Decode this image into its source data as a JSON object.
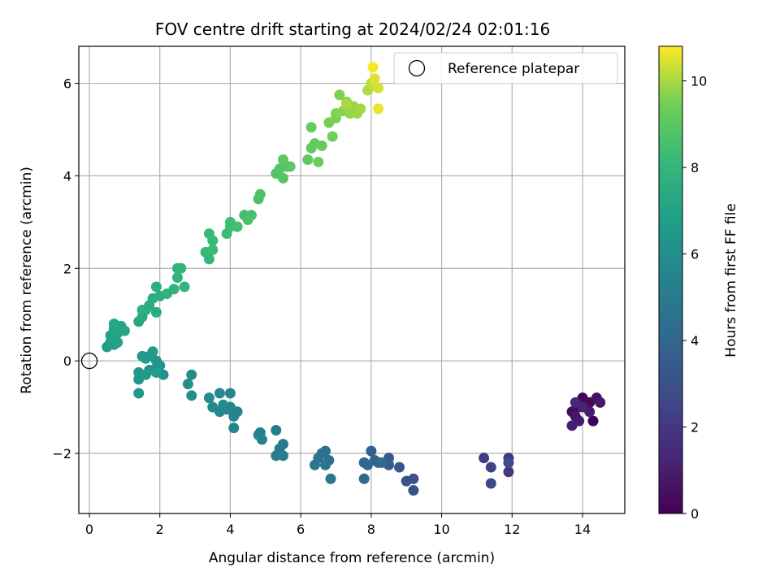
{
  "chart_data": {
    "type": "scatter",
    "title": "FOV centre drift starting at 2024/02/24 02:01:16",
    "xlabel": "Angular distance from reference (arcmin)",
    "ylabel": "Rotation from reference (arcmin)",
    "xlim": [
      -0.3,
      15.2
    ],
    "ylim": [
      -3.3,
      6.8
    ],
    "xticks": [
      0,
      2,
      4,
      6,
      8,
      10,
      12,
      14
    ],
    "yticks": [
      -2,
      0,
      2,
      4,
      6
    ],
    "grid": true,
    "legend": {
      "placement": "top-right",
      "entries": [
        "Reference platepar"
      ]
    },
    "reference_point": {
      "x": 0,
      "y": 0,
      "label": "Reference platepar"
    },
    "colorbar": {
      "label": "Hours from first FF file",
      "colormap": "viridis",
      "range": [
        0,
        10.8
      ],
      "ticks": [
        0,
        2,
        4,
        6,
        8,
        10
      ]
    },
    "points": [
      {
        "x": 14.3,
        "y": -1.3,
        "c": 0.0
      },
      {
        "x": 14.0,
        "y": -0.8,
        "c": 0.1
      },
      {
        "x": 14.2,
        "y": -0.9,
        "c": 0.2
      },
      {
        "x": 13.9,
        "y": -1.0,
        "c": 0.3
      },
      {
        "x": 13.7,
        "y": -1.1,
        "c": 0.4
      },
      {
        "x": 14.1,
        "y": -1.0,
        "c": 0.5
      },
      {
        "x": 14.4,
        "y": -0.8,
        "c": 0.6
      },
      {
        "x": 13.8,
        "y": -1.2,
        "c": 0.7
      },
      {
        "x": 14.5,
        "y": -0.9,
        "c": 0.8
      },
      {
        "x": 13.9,
        "y": -1.3,
        "c": 0.9
      },
      {
        "x": 14.2,
        "y": -1.1,
        "c": 1.0
      },
      {
        "x": 13.7,
        "y": -1.4,
        "c": 1.1
      },
      {
        "x": 14.0,
        "y": -1.0,
        "c": 1.2
      },
      {
        "x": 13.8,
        "y": -0.9,
        "c": 1.3
      },
      {
        "x": 11.9,
        "y": -2.1,
        "c": 1.8
      },
      {
        "x": 11.9,
        "y": -2.4,
        "c": 2.0
      },
      {
        "x": 11.2,
        "y": -2.1,
        "c": 2.2
      },
      {
        "x": 11.4,
        "y": -2.3,
        "c": 2.4
      },
      {
        "x": 11.4,
        "y": -2.65,
        "c": 2.6
      },
      {
        "x": 11.9,
        "y": -2.2,
        "c": 2.7
      },
      {
        "x": 9.2,
        "y": -2.8,
        "c": 3.0
      },
      {
        "x": 9.2,
        "y": -2.55,
        "c": 3.1
      },
      {
        "x": 9.0,
        "y": -2.6,
        "c": 3.2
      },
      {
        "x": 8.8,
        "y": -2.3,
        "c": 3.3
      },
      {
        "x": 8.5,
        "y": -2.1,
        "c": 3.4
      },
      {
        "x": 8.5,
        "y": -2.25,
        "c": 3.5
      },
      {
        "x": 8.2,
        "y": -2.2,
        "c": 3.6
      },
      {
        "x": 8.0,
        "y": -1.95,
        "c": 3.7
      },
      {
        "x": 8.1,
        "y": -2.15,
        "c": 3.8
      },
      {
        "x": 7.9,
        "y": -2.25,
        "c": 3.9
      },
      {
        "x": 7.8,
        "y": -2.2,
        "c": 4.0
      },
      {
        "x": 7.8,
        "y": -2.55,
        "c": 4.1
      },
      {
        "x": 8.3,
        "y": -2.2,
        "c": 4.2
      },
      {
        "x": 6.8,
        "y": -2.15,
        "c": 4.3
      },
      {
        "x": 6.7,
        "y": -1.95,
        "c": 4.4
      },
      {
        "x": 6.6,
        "y": -2.0,
        "c": 4.5
      },
      {
        "x": 6.5,
        "y": -2.1,
        "c": 4.6
      },
      {
        "x": 6.4,
        "y": -2.25,
        "c": 4.7
      },
      {
        "x": 6.7,
        "y": -2.25,
        "c": 4.8
      },
      {
        "x": 6.85,
        "y": -2.55,
        "c": 4.9
      },
      {
        "x": 5.5,
        "y": -1.8,
        "c": 5.0
      },
      {
        "x": 5.4,
        "y": -1.9,
        "c": 5.05
      },
      {
        "x": 5.3,
        "y": -1.5,
        "c": 5.1
      },
      {
        "x": 5.5,
        "y": -2.05,
        "c": 5.15
      },
      {
        "x": 5.3,
        "y": -2.05,
        "c": 5.2
      },
      {
        "x": 4.8,
        "y": -1.6,
        "c": 5.25
      },
      {
        "x": 4.9,
        "y": -1.7,
        "c": 5.3
      },
      {
        "x": 4.85,
        "y": -1.55,
        "c": 5.35
      },
      {
        "x": 4.1,
        "y": -1.45,
        "c": 5.4
      },
      {
        "x": 4.1,
        "y": -1.2,
        "c": 5.45
      },
      {
        "x": 4.2,
        "y": -1.1,
        "c": 5.5
      },
      {
        "x": 4.0,
        "y": -1.0,
        "c": 5.55
      },
      {
        "x": 3.9,
        "y": -1.05,
        "c": 5.6
      },
      {
        "x": 4.0,
        "y": -0.7,
        "c": 5.65
      },
      {
        "x": 3.7,
        "y": -0.7,
        "c": 5.7
      },
      {
        "x": 3.5,
        "y": -1.0,
        "c": 5.75
      },
      {
        "x": 3.7,
        "y": -1.1,
        "c": 5.8
      },
      {
        "x": 3.4,
        "y": -0.8,
        "c": 5.85
      },
      {
        "x": 3.8,
        "y": -0.95,
        "c": 5.9
      },
      {
        "x": 2.9,
        "y": -0.3,
        "c": 5.95
      },
      {
        "x": 2.8,
        "y": -0.5,
        "c": 6.0
      },
      {
        "x": 2.9,
        "y": -0.75,
        "c": 6.05
      },
      {
        "x": 2.1,
        "y": -0.3,
        "c": 6.1
      },
      {
        "x": 2.0,
        "y": -0.1,
        "c": 6.15
      },
      {
        "x": 1.8,
        "y": -0.2,
        "c": 6.2
      },
      {
        "x": 1.9,
        "y": 0.0,
        "c": 6.25
      },
      {
        "x": 1.7,
        "y": -0.2,
        "c": 6.3
      },
      {
        "x": 1.4,
        "y": -0.7,
        "c": 6.35
      },
      {
        "x": 1.4,
        "y": -0.4,
        "c": 6.4
      },
      {
        "x": 1.4,
        "y": -0.25,
        "c": 6.45
      },
      {
        "x": 1.6,
        "y": -0.3,
        "c": 6.5
      },
      {
        "x": 1.5,
        "y": 0.1,
        "c": 6.55
      },
      {
        "x": 1.7,
        "y": 0.1,
        "c": 6.6
      },
      {
        "x": 1.8,
        "y": 0.2,
        "c": 6.65
      },
      {
        "x": 1.6,
        "y": 0.05,
        "c": 6.7
      },
      {
        "x": 1.9,
        "y": -0.25,
        "c": 6.75
      },
      {
        "x": 0.5,
        "y": 0.3,
        "c": 6.8
      },
      {
        "x": 0.6,
        "y": 0.4,
        "c": 6.85
      },
      {
        "x": 0.7,
        "y": 0.35,
        "c": 6.9
      },
      {
        "x": 0.8,
        "y": 0.4,
        "c": 6.95
      },
      {
        "x": 0.6,
        "y": 0.55,
        "c": 7.0
      },
      {
        "x": 0.7,
        "y": 0.7,
        "c": 7.05
      },
      {
        "x": 0.8,
        "y": 0.6,
        "c": 7.1
      },
      {
        "x": 0.9,
        "y": 0.75,
        "c": 7.15
      },
      {
        "x": 1.0,
        "y": 0.65,
        "c": 7.2
      },
      {
        "x": 0.7,
        "y": 0.8,
        "c": 7.25
      },
      {
        "x": 1.4,
        "y": 0.85,
        "c": 7.3
      },
      {
        "x": 1.5,
        "y": 0.95,
        "c": 7.35
      },
      {
        "x": 1.6,
        "y": 1.1,
        "c": 7.4
      },
      {
        "x": 1.7,
        "y": 1.2,
        "c": 7.45
      },
      {
        "x": 1.9,
        "y": 1.05,
        "c": 7.5
      },
      {
        "x": 1.8,
        "y": 1.35,
        "c": 7.55
      },
      {
        "x": 2.0,
        "y": 1.4,
        "c": 7.6
      },
      {
        "x": 1.9,
        "y": 1.6,
        "c": 7.65
      },
      {
        "x": 1.5,
        "y": 1.1,
        "c": 7.7
      },
      {
        "x": 2.2,
        "y": 1.45,
        "c": 7.75
      },
      {
        "x": 2.4,
        "y": 1.55,
        "c": 7.8
      },
      {
        "x": 2.5,
        "y": 1.8,
        "c": 7.85
      },
      {
        "x": 2.6,
        "y": 2.0,
        "c": 7.9
      },
      {
        "x": 2.7,
        "y": 1.6,
        "c": 7.95
      },
      {
        "x": 2.5,
        "y": 2.0,
        "c": 8.0
      },
      {
        "x": 3.4,
        "y": 2.2,
        "c": 8.05
      },
      {
        "x": 3.3,
        "y": 2.35,
        "c": 8.1
      },
      {
        "x": 3.5,
        "y": 2.6,
        "c": 8.15
      },
      {
        "x": 3.4,
        "y": 2.75,
        "c": 8.2
      },
      {
        "x": 3.5,
        "y": 2.4,
        "c": 8.25
      },
      {
        "x": 3.9,
        "y": 2.75,
        "c": 8.3
      },
      {
        "x": 4.0,
        "y": 2.9,
        "c": 8.35
      },
      {
        "x": 4.0,
        "y": 3.0,
        "c": 8.4
      },
      {
        "x": 4.2,
        "y": 2.9,
        "c": 8.45
      },
      {
        "x": 4.4,
        "y": 3.15,
        "c": 8.5
      },
      {
        "x": 4.6,
        "y": 3.15,
        "c": 8.55
      },
      {
        "x": 4.5,
        "y": 3.05,
        "c": 8.6
      },
      {
        "x": 4.8,
        "y": 3.5,
        "c": 8.65
      },
      {
        "x": 4.85,
        "y": 3.6,
        "c": 8.7
      },
      {
        "x": 5.3,
        "y": 4.05,
        "c": 8.8
      },
      {
        "x": 5.4,
        "y": 4.15,
        "c": 8.85
      },
      {
        "x": 5.5,
        "y": 3.95,
        "c": 8.9
      },
      {
        "x": 5.6,
        "y": 4.2,
        "c": 8.95
      },
      {
        "x": 5.7,
        "y": 4.2,
        "c": 9.0
      },
      {
        "x": 5.5,
        "y": 4.35,
        "c": 9.05
      },
      {
        "x": 6.2,
        "y": 4.35,
        "c": 9.1
      },
      {
        "x": 6.3,
        "y": 4.6,
        "c": 9.15
      },
      {
        "x": 6.4,
        "y": 4.7,
        "c": 9.2
      },
      {
        "x": 6.6,
        "y": 4.65,
        "c": 9.25
      },
      {
        "x": 6.3,
        "y": 5.05,
        "c": 9.3
      },
      {
        "x": 6.5,
        "y": 4.3,
        "c": 9.35
      },
      {
        "x": 6.9,
        "y": 4.85,
        "c": 9.45
      },
      {
        "x": 6.8,
        "y": 5.15,
        "c": 9.5
      },
      {
        "x": 7.0,
        "y": 5.25,
        "c": 9.55
      },
      {
        "x": 7.1,
        "y": 5.75,
        "c": 9.6
      },
      {
        "x": 7.0,
        "y": 5.35,
        "c": 9.65
      },
      {
        "x": 7.2,
        "y": 5.4,
        "c": 9.7
      },
      {
        "x": 7.3,
        "y": 5.6,
        "c": 9.75
      },
      {
        "x": 7.4,
        "y": 5.35,
        "c": 9.8
      },
      {
        "x": 7.5,
        "y": 5.5,
        "c": 9.85
      },
      {
        "x": 7.6,
        "y": 5.35,
        "c": 9.9
      },
      {
        "x": 7.7,
        "y": 5.45,
        "c": 9.95
      },
      {
        "x": 7.3,
        "y": 5.55,
        "c": 10.0
      },
      {
        "x": 7.9,
        "y": 5.85,
        "c": 10.1
      },
      {
        "x": 8.0,
        "y": 6.0,
        "c": 10.2
      },
      {
        "x": 8.1,
        "y": 5.95,
        "c": 10.3
      },
      {
        "x": 8.2,
        "y": 5.9,
        "c": 10.4
      },
      {
        "x": 8.1,
        "y": 6.1,
        "c": 10.5
      },
      {
        "x": 8.2,
        "y": 5.45,
        "c": 10.6
      },
      {
        "x": 8.05,
        "y": 6.35,
        "c": 10.75
      }
    ]
  }
}
